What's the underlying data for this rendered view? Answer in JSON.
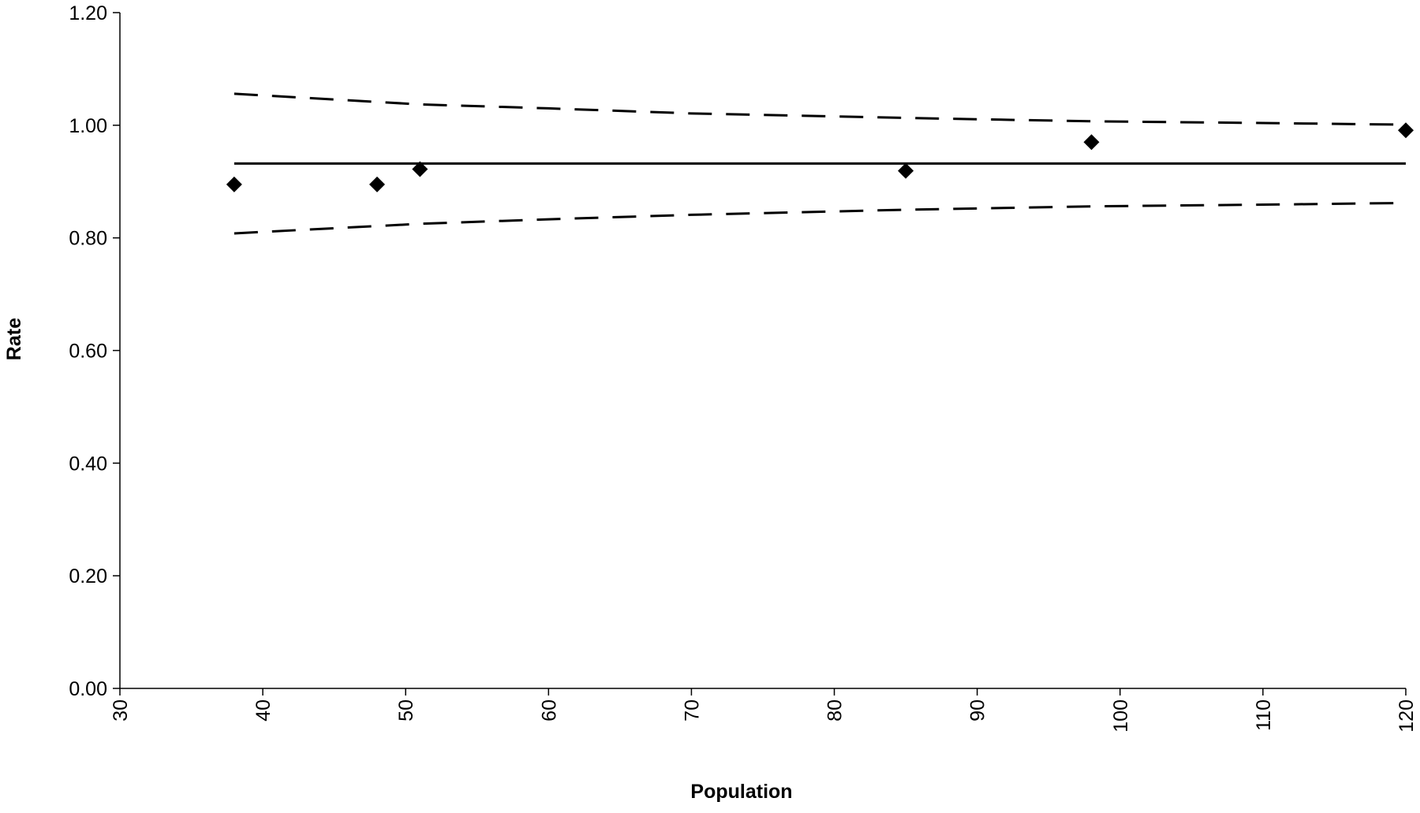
{
  "chart_data": {
    "type": "scatter",
    "title": "",
    "xlabel": "Population",
    "ylabel": "Rate",
    "xlim": [
      30,
      120
    ],
    "ylim": [
      0,
      1.2
    ],
    "x_ticks": [
      "30",
      "40",
      "50",
      "60",
      "70",
      "80",
      "90",
      "100",
      "110",
      "120"
    ],
    "y_ticks": [
      "0.00",
      "0.20",
      "0.40",
      "0.60",
      "0.80",
      "1.00",
      "1.20"
    ],
    "grid": false,
    "legend": "none",
    "series": [
      {
        "type": "scatter",
        "marker": "diamond",
        "color": "#000000",
        "points": [
          {
            "x": 38,
            "y": 0.895
          },
          {
            "x": 48,
            "y": 0.895
          },
          {
            "x": 51,
            "y": 0.922
          },
          {
            "x": 85,
            "y": 0.919
          },
          {
            "x": 98,
            "y": 0.97
          },
          {
            "x": 120,
            "y": 0.991
          }
        ]
      },
      {
        "type": "line",
        "style": "solid",
        "color": "#000000",
        "points": [
          {
            "x": 38,
            "y": 0.932
          },
          {
            "x": 120,
            "y": 0.932
          }
        ]
      },
      {
        "type": "line",
        "style": "dashed",
        "color": "#000000",
        "points": [
          {
            "x": 38,
            "y": 1.056
          },
          {
            "x": 51,
            "y": 1.037
          },
          {
            "x": 60,
            "y": 1.03
          },
          {
            "x": 70,
            "y": 1.021
          },
          {
            "x": 85,
            "y": 1.013
          },
          {
            "x": 98,
            "y": 1.007
          },
          {
            "x": 110,
            "y": 1.004
          },
          {
            "x": 120,
            "y": 1.001
          }
        ]
      },
      {
        "type": "line",
        "style": "dashed",
        "color": "#000000",
        "points": [
          {
            "x": 38,
            "y": 0.808
          },
          {
            "x": 51,
            "y": 0.825
          },
          {
            "x": 60,
            "y": 0.833
          },
          {
            "x": 70,
            "y": 0.841
          },
          {
            "x": 85,
            "y": 0.85
          },
          {
            "x": 98,
            "y": 0.856
          },
          {
            "x": 110,
            "y": 0.859
          },
          {
            "x": 120,
            "y": 0.862
          }
        ]
      }
    ]
  }
}
